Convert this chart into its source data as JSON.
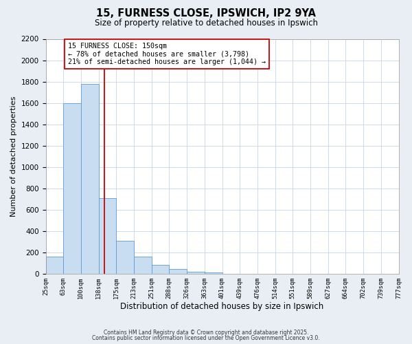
{
  "title": "15, FURNESS CLOSE, IPSWICH, IP2 9YA",
  "subtitle": "Size of property relative to detached houses in Ipswich",
  "xlabel": "Distribution of detached houses by size in Ipswich",
  "ylabel": "Number of detached properties",
  "bar_left_edges": [
    25,
    63,
    100,
    138,
    175,
    213,
    251,
    288,
    326,
    363,
    401,
    439,
    476,
    514,
    551,
    589,
    627,
    664,
    702,
    739
  ],
  "bar_widths": [
    38,
    37,
    38,
    37,
    38,
    38,
    37,
    38,
    37,
    38,
    38,
    37,
    38,
    37,
    38,
    38,
    37,
    38,
    37,
    38
  ],
  "bar_heights": [
    160,
    1600,
    1780,
    710,
    310,
    160,
    80,
    40,
    15,
    10,
    0,
    0,
    0,
    0,
    0,
    0,
    0,
    0,
    0,
    0
  ],
  "bar_color": "#c9ddf0",
  "bar_edge_color": "#5b9bd5",
  "x_tick_labels": [
    "25sqm",
    "63sqm",
    "100sqm",
    "138sqm",
    "175sqm",
    "213sqm",
    "251sqm",
    "288sqm",
    "326sqm",
    "363sqm",
    "401sqm",
    "439sqm",
    "476sqm",
    "514sqm",
    "551sqm",
    "589sqm",
    "627sqm",
    "664sqm",
    "702sqm",
    "739sqm",
    "777sqm"
  ],
  "x_tick_positions": [
    25,
    63,
    100,
    138,
    175,
    213,
    251,
    288,
    326,
    363,
    401,
    439,
    476,
    514,
    551,
    589,
    627,
    664,
    702,
    739,
    777
  ],
  "ylim": [
    0,
    2200
  ],
  "yticks": [
    0,
    200,
    400,
    600,
    800,
    1000,
    1200,
    1400,
    1600,
    1800,
    2000,
    2200
  ],
  "red_line_x": 150,
  "annotation_title": "15 FURNESS CLOSE: 150sqm",
  "annotation_line1": "← 78% of detached houses are smaller (3,798)",
  "annotation_line2": "21% of semi-detached houses are larger (1,044) →",
  "bg_color": "#e8eef4",
  "plot_bg_color": "#ffffff",
  "grid_color": "#c5d5e5",
  "footer_line1": "Contains HM Land Registry data © Crown copyright and database right 2025.",
  "footer_line2": "Contains public sector information licensed under the Open Government Licence v3.0."
}
